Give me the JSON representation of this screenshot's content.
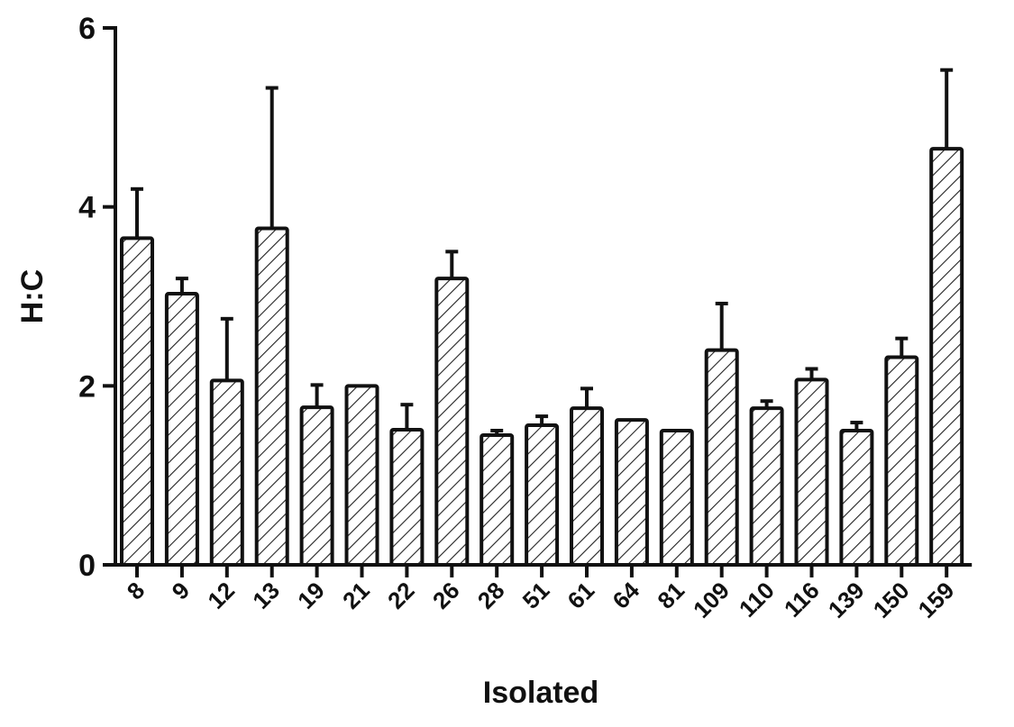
{
  "chart_data": {
    "type": "bar",
    "title": "",
    "xlabel": "Isolated",
    "ylabel": "H:C",
    "ylim": [
      0,
      6
    ],
    "yticks": [
      0,
      2,
      4,
      6
    ],
    "grid": false,
    "legend": null,
    "bar_style": "diagonal hatch, black outline",
    "error_bars": "upper only",
    "categories": [
      "8",
      "9",
      "12",
      "13",
      "19",
      "21",
      "22",
      "26",
      "28",
      "51",
      "61",
      "64",
      "81",
      "109",
      "110",
      "116",
      "139",
      "150",
      "159"
    ],
    "values": [
      3.65,
      3.03,
      2.06,
      3.76,
      1.76,
      2.0,
      1.51,
      3.2,
      1.45,
      1.56,
      1.75,
      1.62,
      1.5,
      2.4,
      1.75,
      2.07,
      1.5,
      2.32,
      4.65
    ],
    "error_upper": [
      0.55,
      0.17,
      0.69,
      1.57,
      0.25,
      0.0,
      0.28,
      0.3,
      0.05,
      0.1,
      0.22,
      0.0,
      0.0,
      0.52,
      0.08,
      0.12,
      0.09,
      0.21,
      0.88
    ]
  },
  "colors": {
    "ink": "#111111",
    "background": "#ffffff"
  }
}
